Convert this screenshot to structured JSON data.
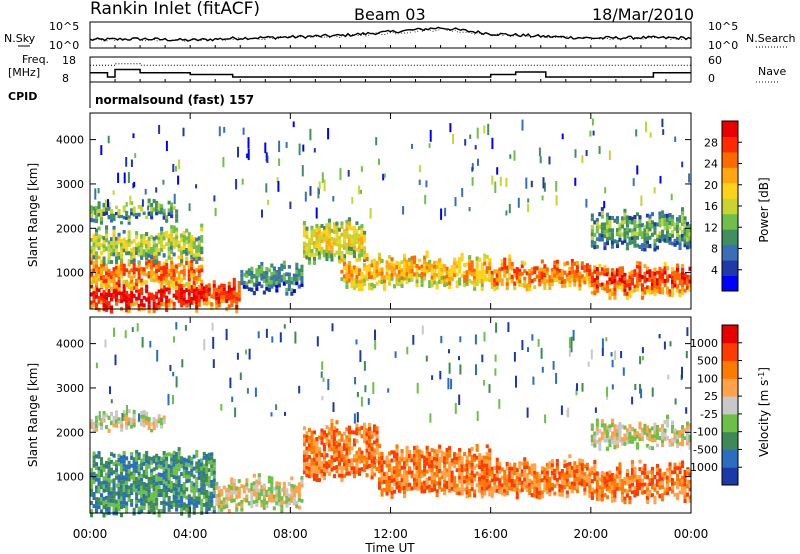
{
  "header": {
    "station": "Rankin Inlet (fitACF)",
    "beam": "Beam 03",
    "date": "18/Mar/2010"
  },
  "chart_data": [
    {
      "type": "line",
      "panel": "noise",
      "left_label": "N.Sky",
      "right_label": "N.Search",
      "left_ticks": [
        "10^5",
        "10^0"
      ],
      "right_ticks": [
        "10^5",
        "10^0"
      ],
      "x": [
        0,
        2,
        4,
        6,
        8,
        10,
        12,
        14,
        16,
        18,
        20,
        22,
        24
      ],
      "series": [
        {
          "name": "N.Sky",
          "style": "solid",
          "values": [
            0.32,
            0.35,
            0.3,
            0.38,
            0.42,
            0.48,
            0.62,
            0.78,
            0.55,
            0.45,
            0.38,
            0.4,
            0.38
          ]
        },
        {
          "name": "N.Search",
          "style": "dotted",
          "values": [
            0.3,
            0.33,
            0.3,
            0.35,
            0.4,
            0.45,
            0.58,
            0.72,
            0.52,
            0.43,
            0.36,
            0.38,
            0.36
          ]
        }
      ]
    },
    {
      "type": "line",
      "panel": "frequency",
      "left_label_lines": [
        "Freq.",
        "[MHz]"
      ],
      "right_label": "Nave",
      "left_ticks": [
        18,
        8
      ],
      "right_ticks": [
        60,
        0
      ],
      "freq": [
        [
          0.0,
          11.7
        ],
        [
          0.7,
          11.7
        ],
        [
          0.7,
          10.0
        ],
        [
          1.0,
          10.0
        ],
        [
          1.0,
          13.0
        ],
        [
          2.0,
          13.0
        ],
        [
          2.0,
          11.7
        ],
        [
          4.0,
          11.7
        ],
        [
          4.0,
          11.0
        ],
        [
          5.7,
          11.0
        ],
        [
          5.7,
          10.0
        ],
        [
          16.0,
          10.0
        ],
        [
          16.0,
          11.0
        ],
        [
          17.0,
          11.0
        ],
        [
          17.0,
          12.0
        ],
        [
          18.2,
          12.0
        ],
        [
          18.2,
          10.0
        ],
        [
          22.5,
          10.0
        ],
        [
          22.5,
          11.7
        ],
        [
          24.0,
          11.7
        ]
      ],
      "nave": [
        [
          0.0,
          40
        ],
        [
          1.0,
          40
        ],
        [
          1.0,
          44
        ],
        [
          2.0,
          44
        ],
        [
          2.0,
          40
        ],
        [
          24.0,
          40
        ]
      ]
    },
    {
      "type": "table",
      "panel": "cpid",
      "label": "CPID",
      "value": "normalsound (fast) 157"
    },
    {
      "type": "heatmap",
      "panel": "power",
      "ylabel": "Slant Range [km]",
      "yticks": [
        1000,
        2000,
        3000,
        4000
      ],
      "ylim": [
        180,
        4600
      ],
      "xlim": [
        0,
        24
      ],
      "colorbar": {
        "label": "Power [dB]",
        "ticks": [
          "28",
          "24",
          "20",
          "16",
          "12",
          "8",
          "4"
        ],
        "colors": [
          "#0000ff",
          "#1f3aa6",
          "#3a6fb8",
          "#3f8f63",
          "#6fbf4a",
          "#c8d431",
          "#ffd21a",
          "#ffa70f",
          "#ff6a00",
          "#ff2a00",
          "#e80000"
        ]
      },
      "bands": [
        {
          "t0": 0.0,
          "t1": 4.5,
          "r0": 200,
          "r1": 700,
          "level": 10
        },
        {
          "t0": 0.0,
          "t1": 4.5,
          "r0": 700,
          "r1": 1300,
          "level": 8
        },
        {
          "t0": 0.0,
          "t1": 4.5,
          "r0": 1300,
          "r1": 1900,
          "level": 5
        },
        {
          "t0": 4.5,
          "t1": 6.0,
          "r0": 200,
          "r1": 700,
          "level": 9
        },
        {
          "t0": 6.0,
          "t1": 8.5,
          "r0": 600,
          "r1": 1100,
          "level": 3
        },
        {
          "t0": 8.5,
          "t1": 11.0,
          "r0": 1300,
          "r1": 2100,
          "level": 6
        },
        {
          "t0": 10.0,
          "t1": 16.0,
          "r0": 700,
          "r1": 1300,
          "level": 7
        },
        {
          "t0": 16.0,
          "t1": 20.0,
          "r0": 700,
          "r1": 1200,
          "level": 8
        },
        {
          "t0": 20.0,
          "t1": 24.0,
          "r0": 500,
          "r1": 1100,
          "level": 9
        },
        {
          "t0": 20.0,
          "t1": 24.0,
          "r0": 1600,
          "r1": 2300,
          "level": 4
        },
        {
          "t0": 0.0,
          "t1": 3.5,
          "r0": 2200,
          "r1": 2500,
          "level": 4
        }
      ]
    },
    {
      "type": "heatmap",
      "panel": "velocity",
      "ylabel": "Slant Range [km]",
      "xlabel": "Time UT",
      "xticks": [
        "00:00",
        "04:00",
        "08:00",
        "12:00",
        "16:00",
        "20:00",
        "00:00"
      ],
      "yticks": [
        1000,
        2000,
        3000,
        4000
      ],
      "ylim": [
        180,
        4600
      ],
      "xlim": [
        0,
        24
      ],
      "colorbar": {
        "label": "Velocity [m s",
        "label_sup": "-1",
        "label_end": "]",
        "ticks": [
          "1000",
          "500",
          "100",
          "25",
          "-25",
          "-100",
          "-500",
          "-1000"
        ],
        "colors": [
          "#1a3aa8",
          "#2a6ec0",
          "#3e8a57",
          "#6cc04a",
          "#c8c8c8",
          "#ffa24a",
          "#ff7a00",
          "#ff3c00",
          "#e60000"
        ]
      },
      "bands": [
        {
          "t0": 0.0,
          "t1": 5.0,
          "r0": 200,
          "r1": 1500,
          "level": 2
        },
        {
          "t0": 5.0,
          "t1": 8.5,
          "r0": 300,
          "r1": 900,
          "level": 4
        },
        {
          "t0": 8.5,
          "t1": 11.5,
          "r0": 1000,
          "r1": 2100,
          "level": 6
        },
        {
          "t0": 11.5,
          "t1": 16.0,
          "r0": 600,
          "r1": 1600,
          "level": 6
        },
        {
          "t0": 16.0,
          "t1": 20.0,
          "r0": 600,
          "r1": 1300,
          "level": 6
        },
        {
          "t0": 20.0,
          "t1": 24.0,
          "r0": 500,
          "r1": 1200,
          "level": 6
        },
        {
          "t0": 0.0,
          "t1": 3.0,
          "r0": 2100,
          "r1": 2400,
          "level": 4
        },
        {
          "t0": 20.0,
          "t1": 24.0,
          "r0": 1700,
          "r1": 2200,
          "level": 4
        }
      ]
    }
  ]
}
